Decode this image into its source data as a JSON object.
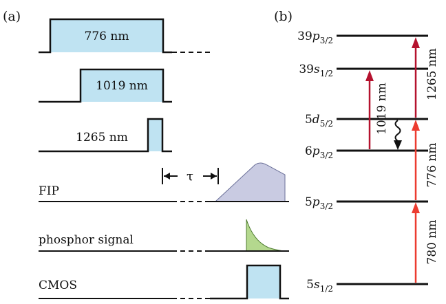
{
  "panel_a": {
    "label": "(a)",
    "pulses": [
      {
        "label": "776 nm"
      },
      {
        "label": "1019 nm"
      },
      {
        "label": "1265 nm"
      }
    ],
    "fip_label": "FIP",
    "delay_label": "τ",
    "phosphor_label": "phosphor signal",
    "cmos_label": "CMOS"
  },
  "panel_b": {
    "label": "(b)",
    "levels": [
      {
        "n": "39",
        "l": "p",
        "j": "3/2"
      },
      {
        "n": "39",
        "l": "s",
        "j": "1/2"
      },
      {
        "n": "5",
        "l": "d",
        "j": "5/2"
      },
      {
        "n": "6",
        "l": "p",
        "j": "3/2"
      },
      {
        "n": "5",
        "l": "p",
        "j": "3/2"
      },
      {
        "n": "5",
        "l": "s",
        "j": "1/2"
      }
    ],
    "transitions": [
      {
        "label": "780 nm"
      },
      {
        "label": "776 nm"
      },
      {
        "label": "1265 nm"
      },
      {
        "label": "1019 nm"
      }
    ]
  },
  "colors": {
    "pulse_fill": "#bfe3f2",
    "fip_fill": "#c9cbe2",
    "phosphor_fill": "#b4d88e",
    "arrow_red": "#ec3c30",
    "arrow_darkred": "#b5122e",
    "line": "#111111"
  }
}
